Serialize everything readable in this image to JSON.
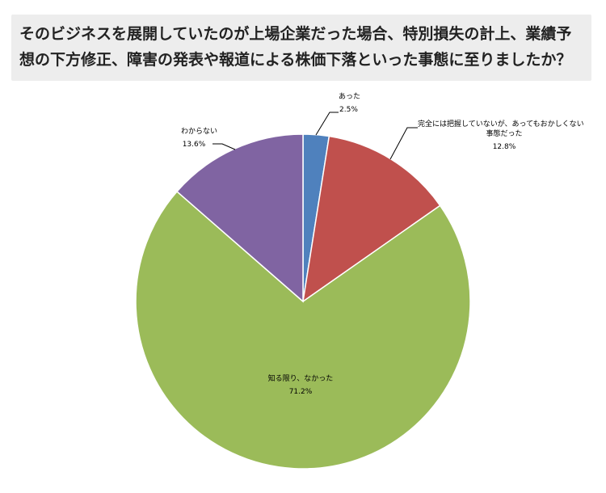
{
  "title": "そのビジネスを展開していたのが上場企業だった場合、特別損失の計上、業績予想の下方修正、障害の発表や報道による株価下落といった事態に至りましたか？",
  "chart_data": {
    "type": "pie",
    "start_angle_deg": 0,
    "direction": "clockwise",
    "slices": [
      {
        "label": "あった",
        "label_lines": [
          "あった"
        ],
        "value": 2.5,
        "value_label": "2.5%",
        "color": "#4f81bd"
      },
      {
        "label": "完全には把握していないが、あってもおかしくない事態だった",
        "label_lines": [
          "完全には把握していないが、あってもおかしくない",
          "事態だった"
        ],
        "value": 12.8,
        "value_label": "12.8%",
        "color": "#c0504d"
      },
      {
        "label": "知る限り、なかった",
        "label_lines": [
          "知る限り、なかった"
        ],
        "value": 71.2,
        "value_label": "71.2%",
        "color": "#9bbb59"
      },
      {
        "label": "わからない",
        "label_lines": [
          "わからない"
        ],
        "value": 13.6,
        "value_label": "13.6%",
        "color": "#8064a2"
      }
    ]
  }
}
